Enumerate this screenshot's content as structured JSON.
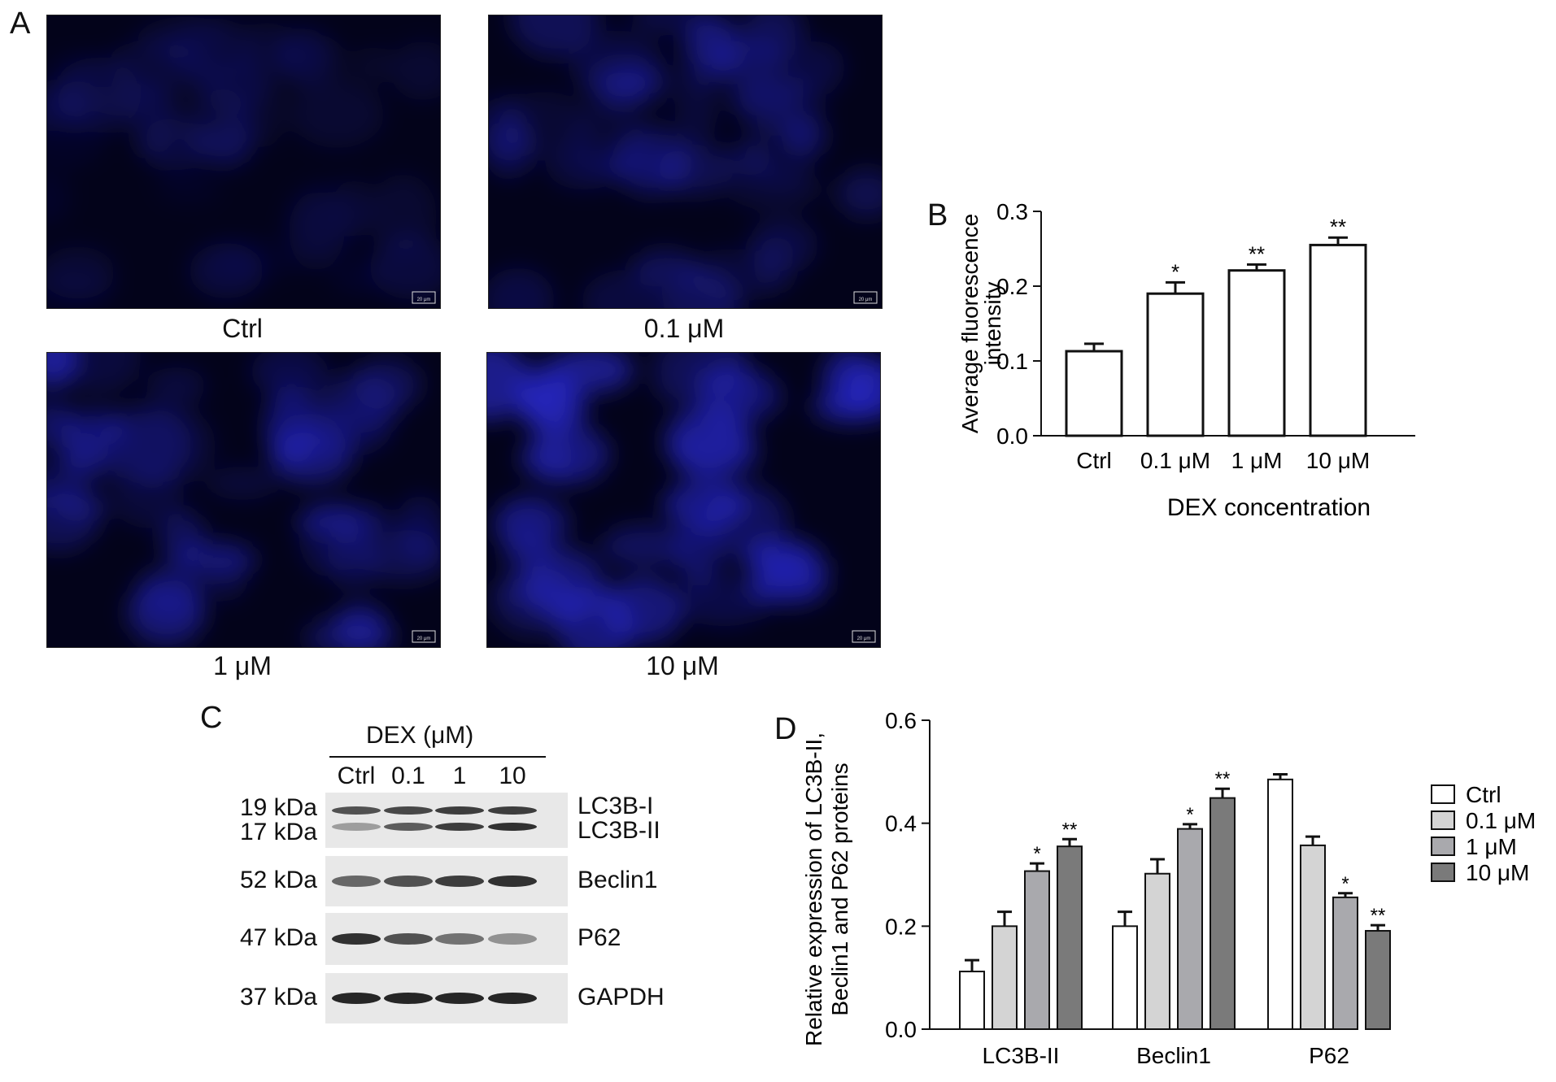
{
  "panel_a": {
    "letter": "A",
    "images": [
      {
        "caption": "Ctrl",
        "scale_text": "20 μm",
        "brightness": 0.25
      },
      {
        "caption": "0.1 μM",
        "scale_text": "20 μm",
        "brightness": 0.45
      },
      {
        "caption": "1 μM",
        "scale_text": "20 μm",
        "brightness": 0.6
      },
      {
        "caption": "10 μM",
        "scale_text": "20 μm",
        "brightness": 0.8
      }
    ]
  },
  "panel_c": {
    "letter": "C",
    "header": "DEX (μM)",
    "lanes": [
      "Ctrl",
      "0.1",
      "1",
      "10"
    ],
    "rows": [
      {
        "left": [
          "19 kDa",
          "17 kDa"
        ],
        "right": [
          "LC3B-I",
          "LC3B-II"
        ],
        "bands": [
          [
            0.7,
            0.75,
            0.8,
            0.8
          ],
          [
            0.35,
            0.65,
            0.8,
            0.85
          ]
        ]
      },
      {
        "left": [
          "52 kDa"
        ],
        "right": [
          "Beclin1"
        ],
        "bands": [
          [
            0.6,
            0.7,
            0.8,
            0.85
          ]
        ]
      },
      {
        "left": [
          "47 kDa"
        ],
        "right": [
          "P62"
        ],
        "bands": [
          [
            0.85,
            0.7,
            0.55,
            0.4
          ]
        ]
      },
      {
        "left": [
          "37 kDa"
        ],
        "right": [
          "GAPDH"
        ],
        "bands": [
          [
            0.9,
            0.9,
            0.9,
            0.9
          ]
        ]
      }
    ]
  },
  "chart_data": [
    {
      "panel": "B",
      "type": "bar",
      "categories": [
        "Ctrl",
        "0.1 μM",
        "1 μM",
        "10 μM"
      ],
      "values": [
        0.113,
        0.19,
        0.221,
        0.255
      ],
      "errors": [
        0.01,
        0.015,
        0.008,
        0.01
      ],
      "significance": [
        "",
        "*",
        "**",
        "**"
      ],
      "xlabel": "DEX concentration",
      "ylabel": "Average fluorescence intensity",
      "ylim": [
        0,
        0.3
      ],
      "yticks": [
        "0.0",
        "0.1",
        "0.2",
        "0.3"
      ],
      "bar_color": "#ffffff"
    },
    {
      "panel": "D",
      "type": "bar",
      "categories": [
        "LC3B-II",
        "Beclin1",
        "P62"
      ],
      "series": [
        {
          "name": "Ctrl",
          "values": [
            0.112,
            0.2,
            0.485
          ],
          "errors": [
            0.022,
            0.028,
            0.01
          ],
          "significance": [
            "",
            "",
            ""
          ],
          "color": "#ffffff"
        },
        {
          "name": "0.1 μM",
          "values": [
            0.2,
            0.302,
            0.357
          ],
          "errors": [
            0.028,
            0.028,
            0.017
          ],
          "significance": [
            "",
            "",
            ""
          ],
          "color": "#d4d4d4"
        },
        {
          "name": "1 μM",
          "values": [
            0.307,
            0.389,
            0.256
          ],
          "errors": [
            0.015,
            0.009,
            0.008
          ],
          "significance": [
            "*",
            "*",
            "*"
          ],
          "color": "#a9a9ad"
        },
        {
          "name": "10 μM",
          "values": [
            0.355,
            0.449,
            0.191
          ],
          "errors": [
            0.014,
            0.018,
            0.011
          ],
          "significance": [
            "**",
            "**",
            "**"
          ],
          "color": "#7a7a7a"
        }
      ],
      "ylabel_lines": [
        "Relative expression of LC3B-II,",
        "Beclin1 and P62 proteins"
      ],
      "ylim": [
        0,
        0.6
      ],
      "yticks": [
        "0.0",
        "0.2",
        "0.4",
        "0.6"
      ],
      "legend": "right"
    }
  ],
  "panel_letters": {
    "b": "B",
    "d": "D"
  }
}
